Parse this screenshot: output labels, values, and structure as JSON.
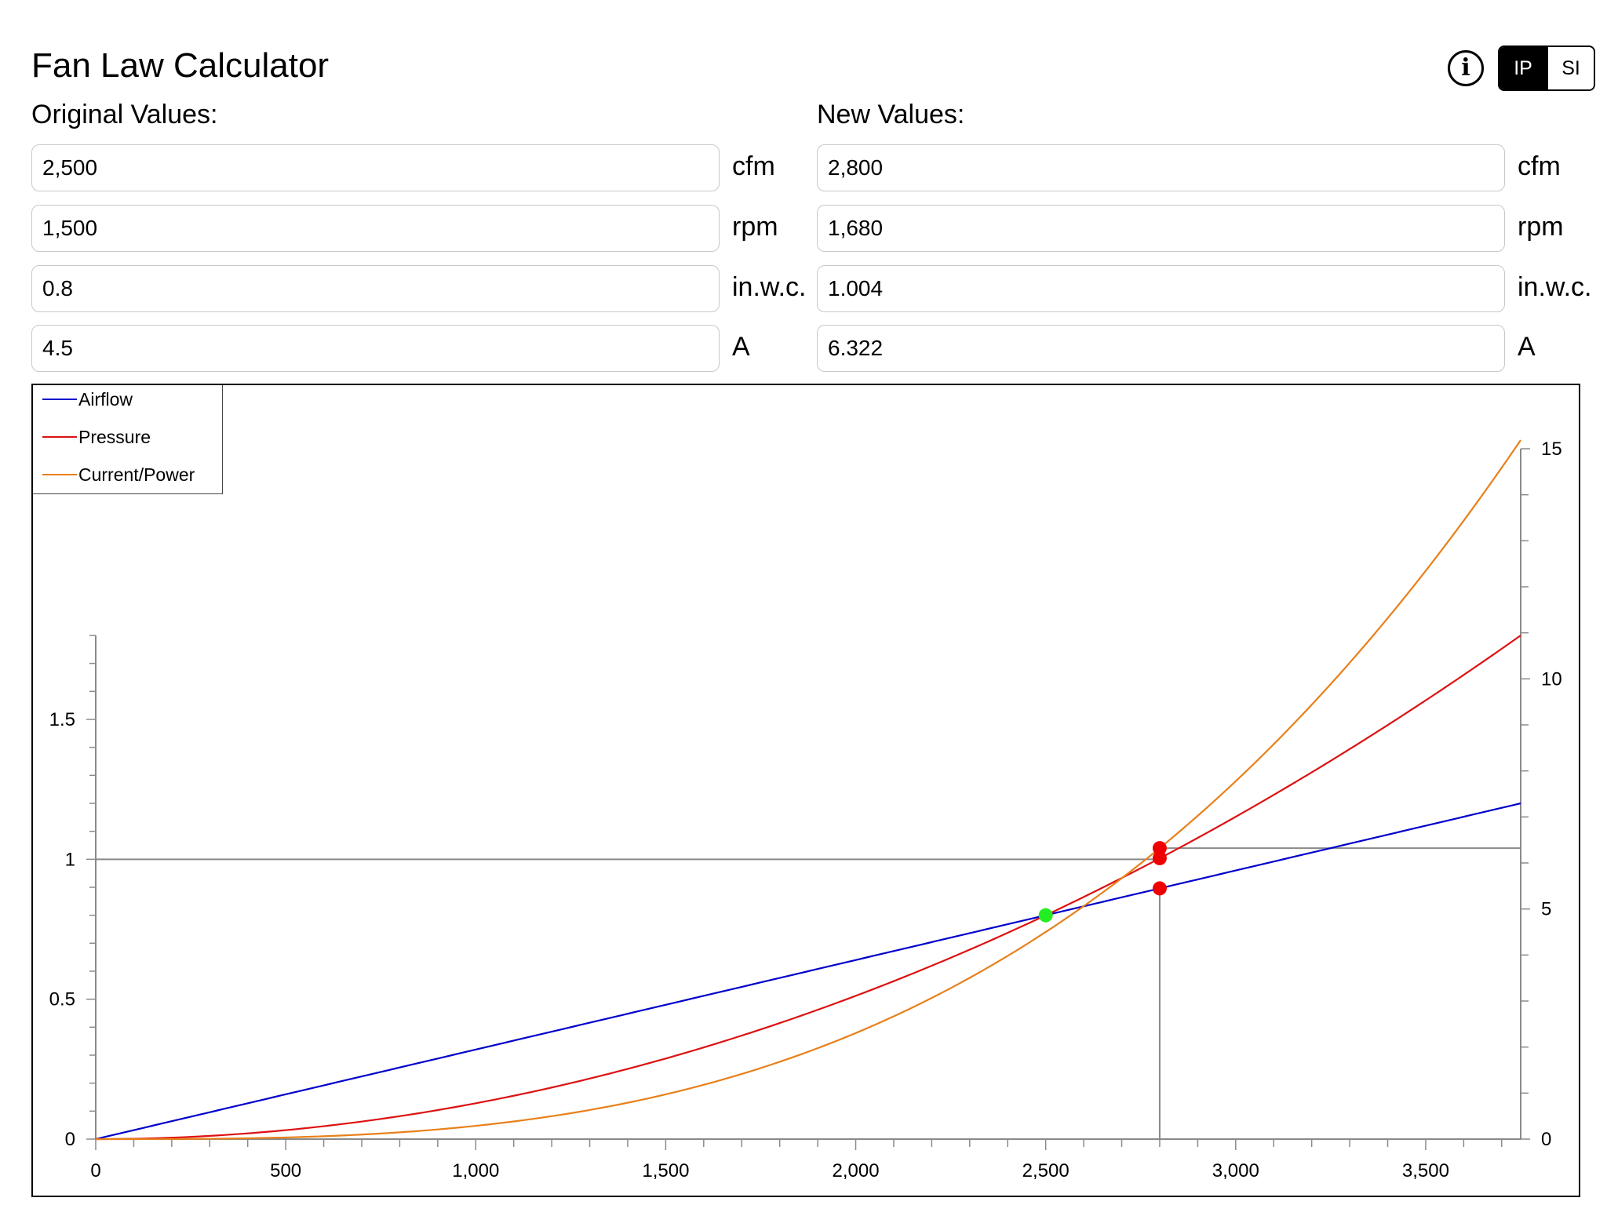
{
  "app": {
    "title": "Fan Law Calculator"
  },
  "toolbar": {
    "info_icon": "info-circle-icon",
    "info_glyph": "i",
    "units_ip": "IP",
    "units_si": "SI",
    "selected": "IP"
  },
  "original": {
    "label": "Original Values:",
    "fields": [
      {
        "value": "2,500",
        "unit": "cfm"
      },
      {
        "value": "1,500",
        "unit": "rpm"
      },
      {
        "value": "0.8",
        "unit": "in.w.c."
      },
      {
        "value": "4.5",
        "unit": "A"
      }
    ]
  },
  "new": {
    "label": "New Values:",
    "fields": [
      {
        "value": "2,800",
        "unit": "cfm"
      },
      {
        "value": "1,680",
        "unit": "rpm"
      },
      {
        "value": "1.004",
        "unit": "in.w.c."
      },
      {
        "value": "6.322",
        "unit": "A"
      }
    ]
  },
  "chart_data": {
    "type": "line",
    "title": "",
    "xlabel": "",
    "ylabel": "",
    "legend_placement": "top-left",
    "grid": false,
    "xlim": [
      0,
      3750
    ],
    "ylim_left": [
      0,
      1.8
    ],
    "ylim_right": [
      0,
      15
    ],
    "x_ticks": [
      0,
      500,
      1000,
      1500,
      2000,
      2500,
      3000,
      3500
    ],
    "x_tick_labels": [
      "0",
      "500",
      "1,000",
      "1,500",
      "2,000",
      "2,500",
      "3,000",
      "3,500"
    ],
    "y_left_ticks": [
      0,
      0.5,
      1,
      1.5
    ],
    "y_left_tick_labels": [
      "0",
      "0.5",
      "1",
      "1.5"
    ],
    "y_right_ticks": [
      0,
      5,
      10,
      15
    ],
    "y_right_tick_labels": [
      "0",
      "5",
      "10",
      "15"
    ],
    "series": [
      {
        "name": "Airflow",
        "color": "#0000cc",
        "axis": "left",
        "law": "linear",
        "x": [
          0,
          3750
        ],
        "y": [
          0,
          1.2
        ]
      },
      {
        "name": "Pressure",
        "color": "#dd1111",
        "axis": "left",
        "law": "quadratic",
        "x": [
          0,
          1000,
          2000,
          2500,
          2800,
          3750
        ],
        "y": [
          0,
          0.128,
          0.512,
          0.8,
          1.004,
          1.8
        ]
      },
      {
        "name": "Current/Power",
        "color": "#e8801a",
        "axis": "right",
        "law": "cubic",
        "x": [
          0,
          1000,
          2000,
          2500,
          2800,
          3750
        ],
        "y": [
          0,
          0.288,
          2.304,
          4.5,
          6.322,
          15.19
        ]
      }
    ],
    "original_point": {
      "x": 2500,
      "y_left": 0.8,
      "color": "#22ee22"
    },
    "new_points": [
      {
        "x": 2800,
        "y_left": 0.896,
        "color": "#ee0000"
      },
      {
        "x": 2800,
        "y_left": 1.004,
        "color": "#ee0000"
      },
      {
        "x": 2800,
        "y_right": 6.322,
        "color": "#ee0000"
      }
    ],
    "reference_lines": [
      {
        "orientation": "horizontal",
        "axis": "left",
        "value": 1.0,
        "from_x": 0,
        "to_x": 2800
      },
      {
        "orientation": "horizontal",
        "axis": "right",
        "value": 6.322,
        "from_x": 2800,
        "to_x": 3750
      },
      {
        "orientation": "vertical",
        "value": 2800,
        "from_y_left": 0,
        "to_y_left": 0.896
      }
    ]
  }
}
